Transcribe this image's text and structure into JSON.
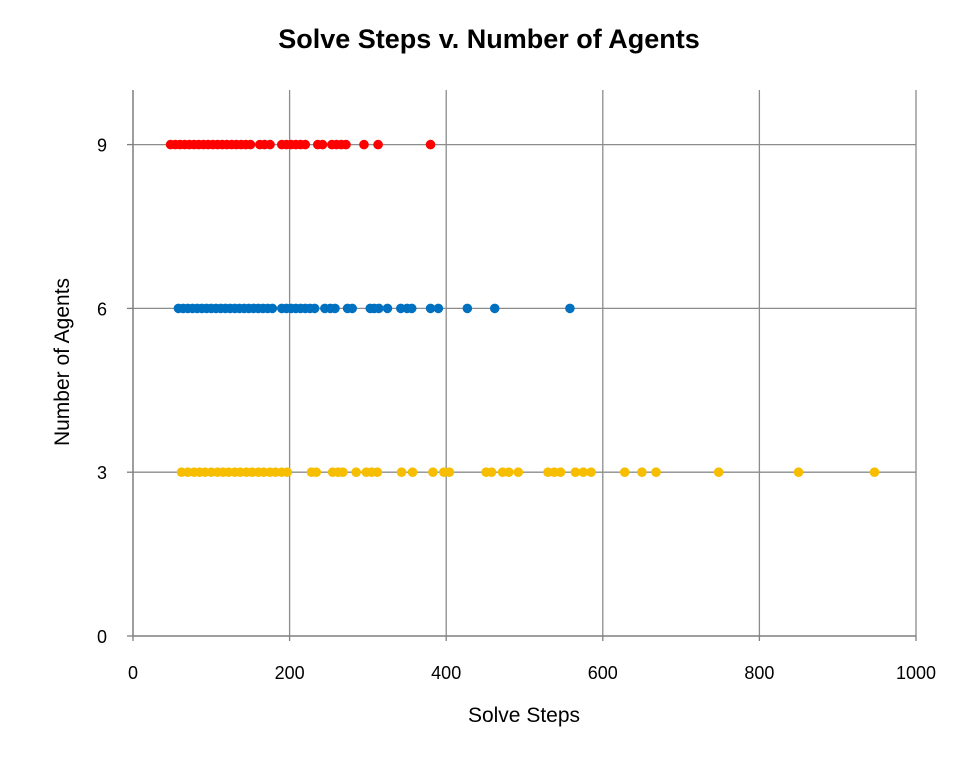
{
  "chart_data": {
    "type": "scatter",
    "title": "Solve Steps v. Number of Agents",
    "xlabel": "Solve Steps",
    "ylabel": "Number of Agents",
    "xlim": [
      0,
      1000
    ],
    "ylim": [
      0,
      10
    ],
    "x_ticks": [
      0,
      200,
      400,
      600,
      800,
      1000
    ],
    "y_ticks": [
      0,
      3,
      6,
      9
    ],
    "x_tick_labels": [
      "0",
      "200",
      "400",
      "600",
      "800",
      "1000"
    ],
    "y_tick_labels": [
      "0",
      "3",
      "6",
      "9"
    ],
    "grid": true,
    "legend": "none",
    "series": [
      {
        "color": "#F7BE00",
        "y": 3,
        "x": [
          62,
          70,
          78,
          85,
          92,
          100,
          108,
          115,
          122,
          130,
          137,
          145,
          152,
          160,
          167,
          175,
          182,
          190,
          197,
          228,
          234,
          255,
          262,
          268,
          285,
          298,
          305,
          312,
          343,
          357,
          383,
          397,
          404,
          451,
          458,
          472,
          480,
          492,
          530,
          538,
          546,
          565,
          575,
          585,
          628,
          650,
          668,
          748,
          850,
          947
        ]
      },
      {
        "color": "#0070C0",
        "y": 6,
        "x": [
          58,
          64,
          70,
          76,
          82,
          88,
          94,
          100,
          106,
          112,
          118,
          124,
          130,
          136,
          142,
          148,
          154,
          160,
          166,
          172,
          178,
          190,
          196,
          202,
          208,
          214,
          220,
          226,
          232,
          245,
          252,
          258,
          274,
          280,
          303,
          308,
          314,
          325,
          342,
          350,
          356,
          380,
          390,
          427,
          462,
          558
        ]
      },
      {
        "color": "#FF0000",
        "y": 9,
        "x": [
          48,
          54,
          60,
          66,
          72,
          78,
          84,
          90,
          96,
          102,
          108,
          114,
          120,
          126,
          132,
          138,
          144,
          150,
          162,
          168,
          175,
          190,
          196,
          202,
          208,
          214,
          220,
          236,
          242,
          254,
          260,
          266,
          272,
          295,
          313,
          380
        ]
      }
    ]
  }
}
